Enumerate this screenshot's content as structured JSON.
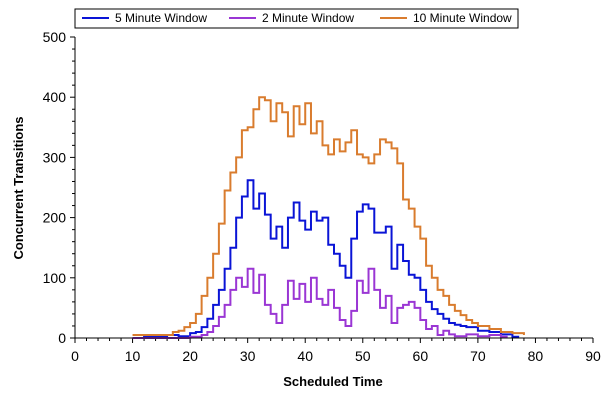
{
  "chart_data": {
    "type": "line",
    "xlabel": "Scheduled Time",
    "ylabel": "Concurrent Transitions",
    "xlim": [
      0,
      90
    ],
    "ylim": [
      0,
      500
    ],
    "xticks": [
      "0",
      "10",
      "20",
      "30",
      "40",
      "50",
      "60",
      "70",
      "80",
      "90"
    ],
    "yticks": [
      "0",
      "100",
      "200",
      "300",
      "400",
      "500"
    ],
    "legend_position": "top",
    "grid": false,
    "series": [
      {
        "name": "5 Minute Window",
        "color": "#0a14d6",
        "x": [
          10,
          12,
          14,
          16,
          18,
          20,
          21,
          22,
          23,
          24,
          25,
          26,
          27,
          28,
          29,
          30,
          31,
          32,
          33,
          34,
          35,
          36,
          37,
          38,
          39,
          40,
          41,
          42,
          43,
          44,
          45,
          46,
          47,
          48,
          49,
          50,
          51,
          52,
          53,
          54,
          55,
          56,
          57,
          58,
          59,
          60,
          61,
          62,
          63,
          64,
          65,
          66,
          67,
          68,
          70,
          72,
          74,
          76,
          77
        ],
        "y": [
          0,
          2,
          3,
          5,
          3,
          8,
          10,
          18,
          32,
          55,
          80,
          115,
          150,
          200,
          235,
          262,
          215,
          240,
          205,
          165,
          185,
          150,
          200,
          225,
          195,
          180,
          210,
          195,
          200,
          155,
          140,
          120,
          100,
          165,
          210,
          222,
          215,
          175,
          175,
          185,
          115,
          155,
          128,
          105,
          100,
          80,
          60,
          48,
          40,
          32,
          25,
          22,
          20,
          18,
          12,
          10,
          6,
          2,
          0
        ]
      },
      {
        "name": "2 Minute Window",
        "color": "#9a36d4",
        "x": [
          10,
          14,
          18,
          20,
          22,
          23,
          24,
          25,
          26,
          27,
          28,
          29,
          30,
          31,
          32,
          33,
          34,
          35,
          36,
          37,
          38,
          39,
          40,
          41,
          42,
          43,
          44,
          45,
          46,
          47,
          48,
          49,
          50,
          51,
          52,
          53,
          54,
          55,
          56,
          57,
          58,
          59,
          60,
          61,
          62,
          63,
          64,
          65,
          66,
          68,
          70,
          72,
          74,
          75
        ],
        "y": [
          0,
          0,
          0,
          2,
          5,
          10,
          20,
          35,
          55,
          80,
          100,
          85,
          115,
          75,
          105,
          55,
          40,
          25,
          55,
          95,
          65,
          90,
          60,
          100,
          65,
          55,
          80,
          50,
          30,
          20,
          45,
          95,
          75,
          115,
          80,
          50,
          70,
          25,
          50,
          55,
          60,
          50,
          30,
          15,
          20,
          5,
          12,
          6,
          3,
          6,
          3,
          5,
          2,
          0
        ]
      },
      {
        "name": "10 Minute Window",
        "color": "#d97c2e",
        "x": [
          10,
          15,
          17,
          18,
          19,
          20,
          21,
          22,
          23,
          24,
          25,
          26,
          27,
          28,
          29,
          30,
          31,
          32,
          33,
          34,
          35,
          36,
          37,
          38,
          39,
          40,
          41,
          42,
          43,
          44,
          45,
          46,
          47,
          48,
          49,
          50,
          51,
          52,
          53,
          54,
          55,
          56,
          57,
          58,
          59,
          60,
          61,
          62,
          63,
          64,
          65,
          66,
          67,
          68,
          69,
          70,
          72,
          74,
          76,
          78
        ],
        "y": [
          5,
          5,
          10,
          12,
          18,
          25,
          40,
          70,
          100,
          140,
          190,
          245,
          275,
          300,
          345,
          350,
          380,
          400,
          395,
          360,
          390,
          375,
          335,
          385,
          355,
          390,
          340,
          360,
          320,
          305,
          330,
          310,
          325,
          345,
          305,
          300,
          290,
          305,
          330,
          325,
          315,
          290,
          230,
          215,
          185,
          165,
          120,
          100,
          80,
          70,
          55,
          45,
          38,
          30,
          25,
          20,
          15,
          10,
          8,
          5
        ]
      }
    ]
  }
}
